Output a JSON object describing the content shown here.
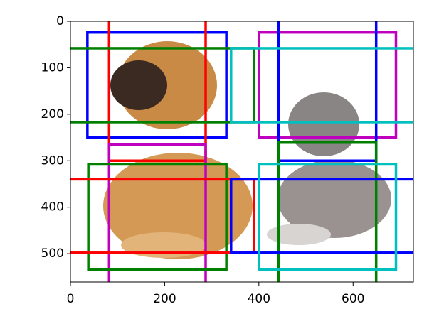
{
  "chart_data": {
    "type": "boxes",
    "xlim": [
      0,
      728
    ],
    "ylim": [
      561,
      0
    ],
    "xticks": [
      0,
      200,
      400,
      600
    ],
    "yticks": [
      0,
      100,
      200,
      300,
      400,
      500
    ],
    "boxes": [
      {
        "color": "#0000ff",
        "coords": [
          36,
          24,
          331,
          250
        ]
      },
      {
        "color": "#ff0000",
        "coords": [
          82,
          -50,
          287,
          300
        ]
      },
      {
        "color": "#008000",
        "coords": [
          -30,
          58,
          390,
          217
        ]
      },
      {
        "color": "#bf00bf",
        "coords": [
          82,
          265,
          287,
          620
        ]
      },
      {
        "color": "#008000",
        "coords": [
          38,
          308,
          331,
          534
        ]
      },
      {
        "color": "#ff0000",
        "coords": [
          -30,
          340,
          390,
          498
        ]
      },
      {
        "color": "#bf00bf",
        "coords": [
          400,
          24,
          691,
          250
        ]
      },
      {
        "color": "#0000ff",
        "coords": [
          442,
          -50,
          649,
          300
        ]
      },
      {
        "color": "#00bfbf",
        "coords": [
          341,
          58,
          760,
          217
        ]
      },
      {
        "color": "#008000",
        "coords": [
          442,
          261,
          649,
          620
        ]
      },
      {
        "color": "#0000ff",
        "coords": [
          341,
          340,
          760,
          498
        ]
      },
      {
        "color": "#00bfbf",
        "coords": [
          400,
          308,
          691,
          534
        ]
      }
    ]
  }
}
